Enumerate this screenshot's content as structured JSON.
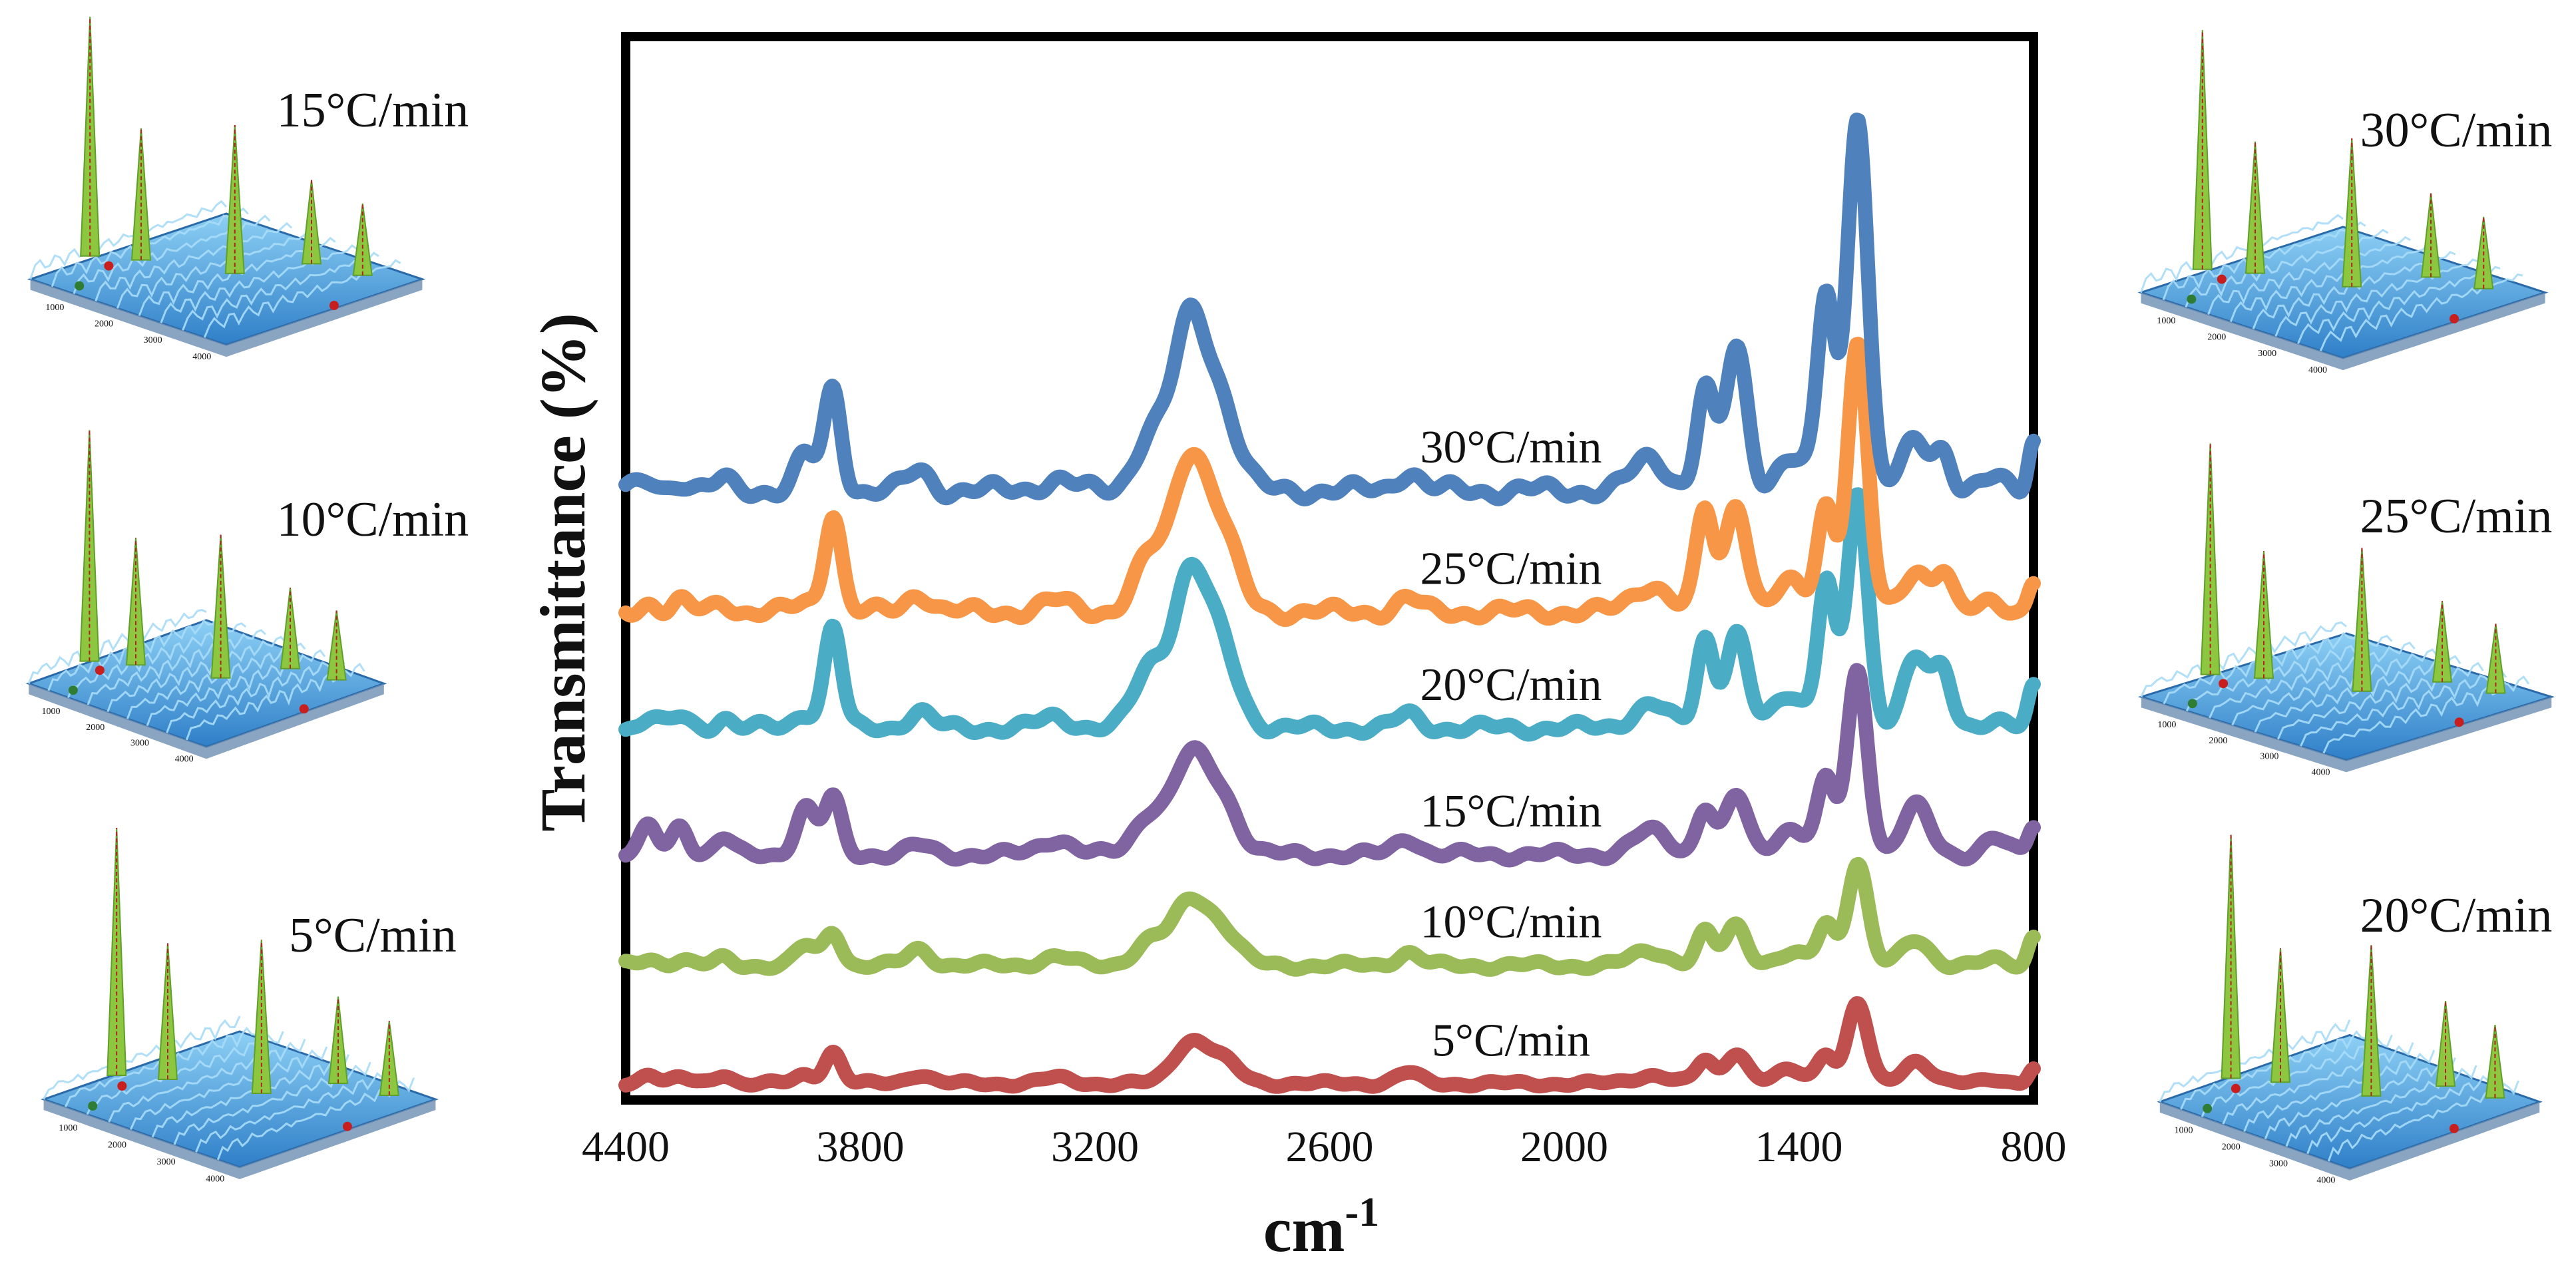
{
  "chart_data": {
    "type": "line",
    "title": "",
    "xlabel": "cm-1",
    "xlabel_base": "cm",
    "xlabel_sup": "-1",
    "ylabel": "Transmittance (%)",
    "xlim": [
      4400,
      800
    ],
    "x_ticks": [
      "4400",
      "3800",
      "3200",
      "2600",
      "2000",
      "1400",
      "800"
    ],
    "x_tick_values": [
      4400,
      3800,
      3200,
      2600,
      2000,
      1400,
      800
    ],
    "ylim": [
      0,
      100
    ],
    "y_tick_labels_shown": false,
    "peak_positions_cm1": [
      4340,
      4260,
      4150,
      3940,
      3870,
      3650,
      3300,
      3060,
      2960,
      2880,
      2400,
      1780,
      1640,
      1560,
      1420,
      1330,
      1250,
      1100,
      1030,
      900,
      800
    ],
    "series": [
      {
        "name": "5°C/min",
        "label": "5°C/min",
        "color": "#C0504D",
        "offset": 0.8,
        "peak_heights": [
          1.0,
          0.5,
          0.9,
          0.8,
          3.0,
          0.9,
          0.5,
          0.0,
          3.6,
          2.2,
          1.0,
          0.8,
          2.2,
          3.0,
          1.2,
          2.8,
          7.5,
          2.2,
          0.0,
          0.5,
          1.4
        ]
      },
      {
        "name": "10°C/min",
        "label": "10°C/min",
        "color": "#9BBB59",
        "offset": 12.0,
        "peak_heights": [
          0.6,
          0.6,
          0.6,
          1.8,
          3.2,
          1.5,
          0.8,
          2.2,
          5.5,
          3.5,
          1.2,
          1.4,
          3.0,
          3.8,
          1.0,
          3.9,
          9.8,
          2.4,
          0.0,
          0.5,
          2.8
        ]
      },
      {
        "name": "15°C/min",
        "label": "15°C/min",
        "color": "#8064A2",
        "offset": 22.5,
        "peak_heights": [
          2.5,
          2.8,
          1.5,
          4.4,
          5.2,
          0.8,
          1.5,
          3.8,
          8.2,
          5.5,
          1.6,
          2.2,
          4.5,
          5.5,
          2.5,
          6.8,
          17.5,
          4.5,
          0.0,
          1.5,
          2.8
        ]
      },
      {
        "name": "20°C/min",
        "label": "20°C/min",
        "color": "#4BACC6",
        "offset": 34.5,
        "peak_heights": [
          1.0,
          1.0,
          1.0,
          1.5,
          9.5,
          1.5,
          1.0,
          5.5,
          13.5,
          7.5,
          1.2,
          2.2,
          8.5,
          9.0,
          3.2,
          14.0,
          22.0,
          7.0,
          4.5,
          1.0,
          3.5
        ]
      },
      {
        "name": "25°C/min",
        "label": "25°C/min",
        "color": "#F79646",
        "offset": 45.5,
        "peak_heights": [
          0.9,
          0.9,
          0.9,
          0.8,
          9.5,
          1.8,
          1.0,
          5.0,
          13.5,
          7.5,
          1.2,
          2.6,
          9.5,
          10.5,
          2.6,
          10.0,
          25.0,
          4.0,
          3.5,
          1.0,
          3.0
        ]
      },
      {
        "name": "30°C/min",
        "label": "30°C/min",
        "color": "#4F81BD",
        "offset": 57.0,
        "peak_heights": [
          0.9,
          0.9,
          0.9,
          3.2,
          9.5,
          1.8,
          1.0,
          5.0,
          15.0,
          8.0,
          1.8,
          3.0,
          9.5,
          13.5,
          3.0,
          18.5,
          36.0,
          4.6,
          3.5,
          1.0,
          5.0
        ]
      }
    ],
    "series_labels_order_top_to_bottom": [
      "30°C/min",
      "25°C/min",
      "20°C/min",
      "15°C/min",
      "10°C/min",
      "5°C/min"
    ]
  },
  "surface_plots": [
    {
      "label": "15°C/min",
      "side": "left"
    },
    {
      "label": "10°C/min",
      "side": "left"
    },
    {
      "label": "5°C/min",
      "side": "left"
    },
    {
      "label": "30°C/min",
      "side": "right"
    },
    {
      "label": "25°C/min",
      "side": "right"
    },
    {
      "label": "20°C/min",
      "side": "right"
    }
  ],
  "surface_axis_ticks": [
    "1000",
    "2000",
    "3000",
    "4000"
  ],
  "colors": {
    "surface_blue": "#3f8fd4",
    "surface_green": "#8dc63f",
    "axis": "#000000"
  }
}
